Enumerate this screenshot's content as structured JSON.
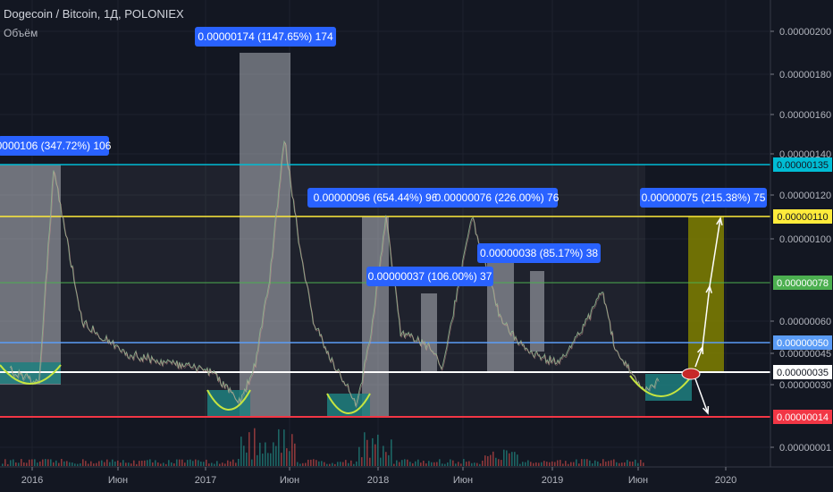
{
  "header": {
    "title": "Dogecoin / Bitcoin, 1Д, POLONIEX",
    "volume_label": "Объём"
  },
  "colors": {
    "background": "#131722",
    "candles_up": "#26a69a",
    "candles_down": "#ef5350",
    "label_bubble": "#2962ff",
    "bowl": "#1f7f7f",
    "arc": "#c6e540",
    "yellow_box": "#808000"
  },
  "chart_data": {
    "type": "line",
    "title": "Dogecoin / Bitcoin, 1Д, POLONIEX",
    "ylim": [
      0,
      2.15e-06
    ],
    "x_ticks": [
      "2016",
      "Июн",
      "2017",
      "Июн",
      "2018",
      "Июн",
      "2019",
      "Июн",
      "2020"
    ],
    "y_ticks": [
      "0.00000200",
      "0.00000180",
      "0.00000160",
      "0.00000140",
      "0.00000120",
      "0.00000100",
      "0.00000060",
      "0.00000045",
      "0.00000030",
      "0.00000001"
    ],
    "x": [
      "2015-11",
      "2016-01",
      "2016-02",
      "2016-04",
      "2016-07",
      "2016-10",
      "2017-01",
      "2017-03",
      "2017-04",
      "2017-05",
      "2017-06",
      "2017-07",
      "2017-08",
      "2017-09",
      "2017-11",
      "2017-12",
      "2018-01",
      "2018-02",
      "2018-04",
      "2018-05",
      "2018-07",
      "2018-09",
      "2018-11",
      "2019-01",
      "2019-03",
      "2019-04",
      "2019-05",
      "2019-06",
      "2019-07",
      "2019-08"
    ],
    "series": [
      {
        "values": [
          3.6e-07,
          3.1e-07,
          1.33e-06,
          6e-07,
          4.5e-07,
          4e-07,
          3.5e-07,
          2.1e-07,
          4e-07,
          8e-07,
          1.48e-06,
          1e-06,
          6e-07,
          4.5e-07,
          2e-07,
          5.5e-07,
          1.1e-06,
          5.5e-07,
          4.8e-07,
          3.8e-07,
          1.1e-06,
          6e-07,
          4.5e-07,
          4e-07,
          6e-07,
          7.5e-07,
          4.5e-07,
          3.5e-07,
          2.8e-07,
          3.2e-07
        ]
      }
    ],
    "price_labels": [
      {
        "price": "0.00000135",
        "color": "#00bcd4"
      },
      {
        "price": "0.00000110",
        "color": "#ffeb3b"
      },
      {
        "price": "0.00000078",
        "color": "#4caf50"
      },
      {
        "price": "0.00000050",
        "color": "#5b9cf6"
      },
      {
        "price": "0.00000035",
        "color": "#ffffff"
      },
      {
        "price": "0.00000014",
        "color": "#f23645"
      }
    ],
    "annotations": [
      {
        "text": "0000106 (347.72%) 106"
      },
      {
        "text": "0.00000174 (1147.65%) 174"
      },
      {
        "text": "0.00000096 (654.44%) 96"
      },
      {
        "text": "0.00000076 (226.00%) 76"
      },
      {
        "text": "0.00000037 (106.00%) 37"
      },
      {
        "text": "0.00000038 (85.17%) 38"
      },
      {
        "text": "0.00000075 (215.38%) 75"
      }
    ]
  }
}
